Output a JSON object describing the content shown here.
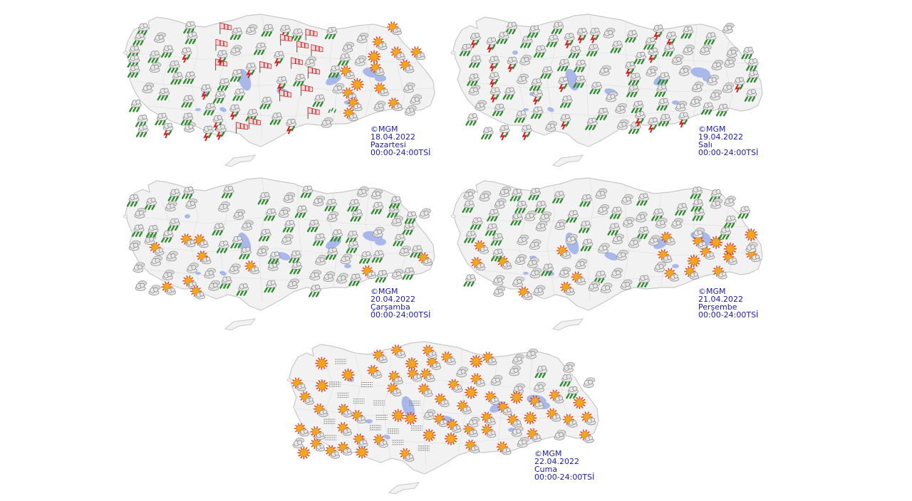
{
  "panels": [
    {
      "id": "p1",
      "copyright": "©MGM",
      "date": "18.04.2022",
      "day": "Pazartesi",
      "period": "00:00-24:00TSİ"
    },
    {
      "id": "p2",
      "copyright": "©MGM",
      "date": "19.04.2022",
      "day": "Salı",
      "period": "00:00-24:00TSİ"
    },
    {
      "id": "p3",
      "copyright": "©MGM",
      "date": "20.04.2022",
      "day": "Çarşamba",
      "period": "00:00-24:00TSİ"
    },
    {
      "id": "p4",
      "copyright": "©MGM",
      "date": "21.04.2022",
      "day": "Perşembe",
      "period": "00:00-24:00TSİ"
    },
    {
      "id": "p5",
      "copyright": "©MGM",
      "date": "22.04.2022",
      "day": "Cuma",
      "period": "00:00-24:00TSİ"
    }
  ],
  "colors": {
    "land": "#f2f2f2",
    "border": "#c8c8c8",
    "water": "#a9b8ea",
    "caption": "#1a1aa6",
    "sun": "#f4a51c",
    "rain": "#2e8b2e",
    "storm": "#d42020",
    "cloud": "#b4b4b4"
  },
  "icons": [
    "rain-icon",
    "storm-icon",
    "cloud-icon",
    "partly-sunny-icon",
    "wind-icon",
    "sun-icon"
  ]
}
